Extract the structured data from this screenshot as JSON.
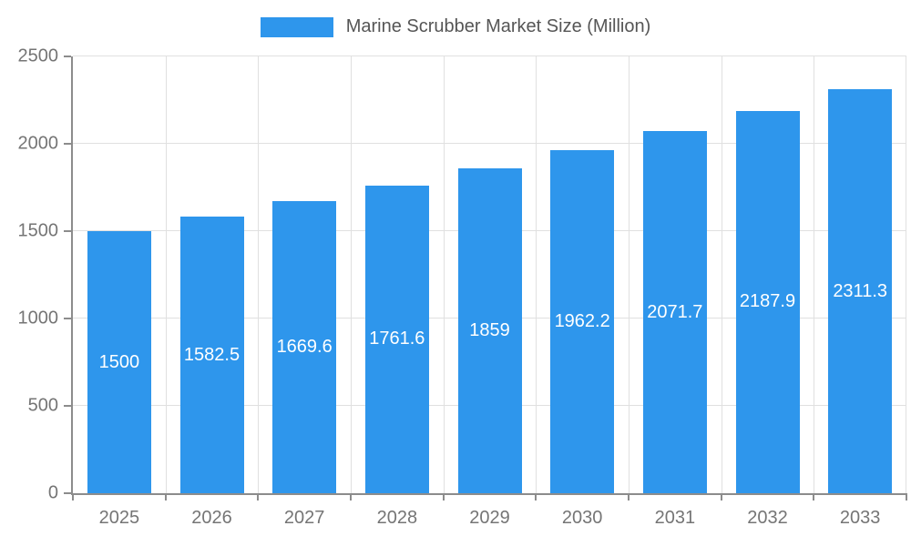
{
  "chart_data": {
    "type": "bar",
    "title": "Marine Scrubber Market Size (Million)",
    "categories": [
      "2025",
      "2026",
      "2027",
      "2028",
      "2029",
      "2030",
      "2031",
      "2032",
      "2033"
    ],
    "values": [
      1500,
      1582.5,
      1669.6,
      1761.6,
      1859,
      1962.2,
      2071.7,
      2187.9,
      2311.3
    ],
    "value_labels": [
      "1500",
      "1582.5",
      "1669.6",
      "1761.6",
      "1859",
      "1962.2",
      "2071.7",
      "2187.9",
      "2311.3"
    ],
    "xlabel": "",
    "ylabel": "",
    "ylim": [
      0,
      2500
    ],
    "yticks": [
      0,
      500,
      1000,
      1500,
      2000,
      2500
    ],
    "grid": true,
    "legend_position": "top",
    "bar_color": "#2E96EC",
    "label_color": "#ffffff",
    "axis_label_color": "#757575",
    "legend_text_color": "#555555"
  }
}
